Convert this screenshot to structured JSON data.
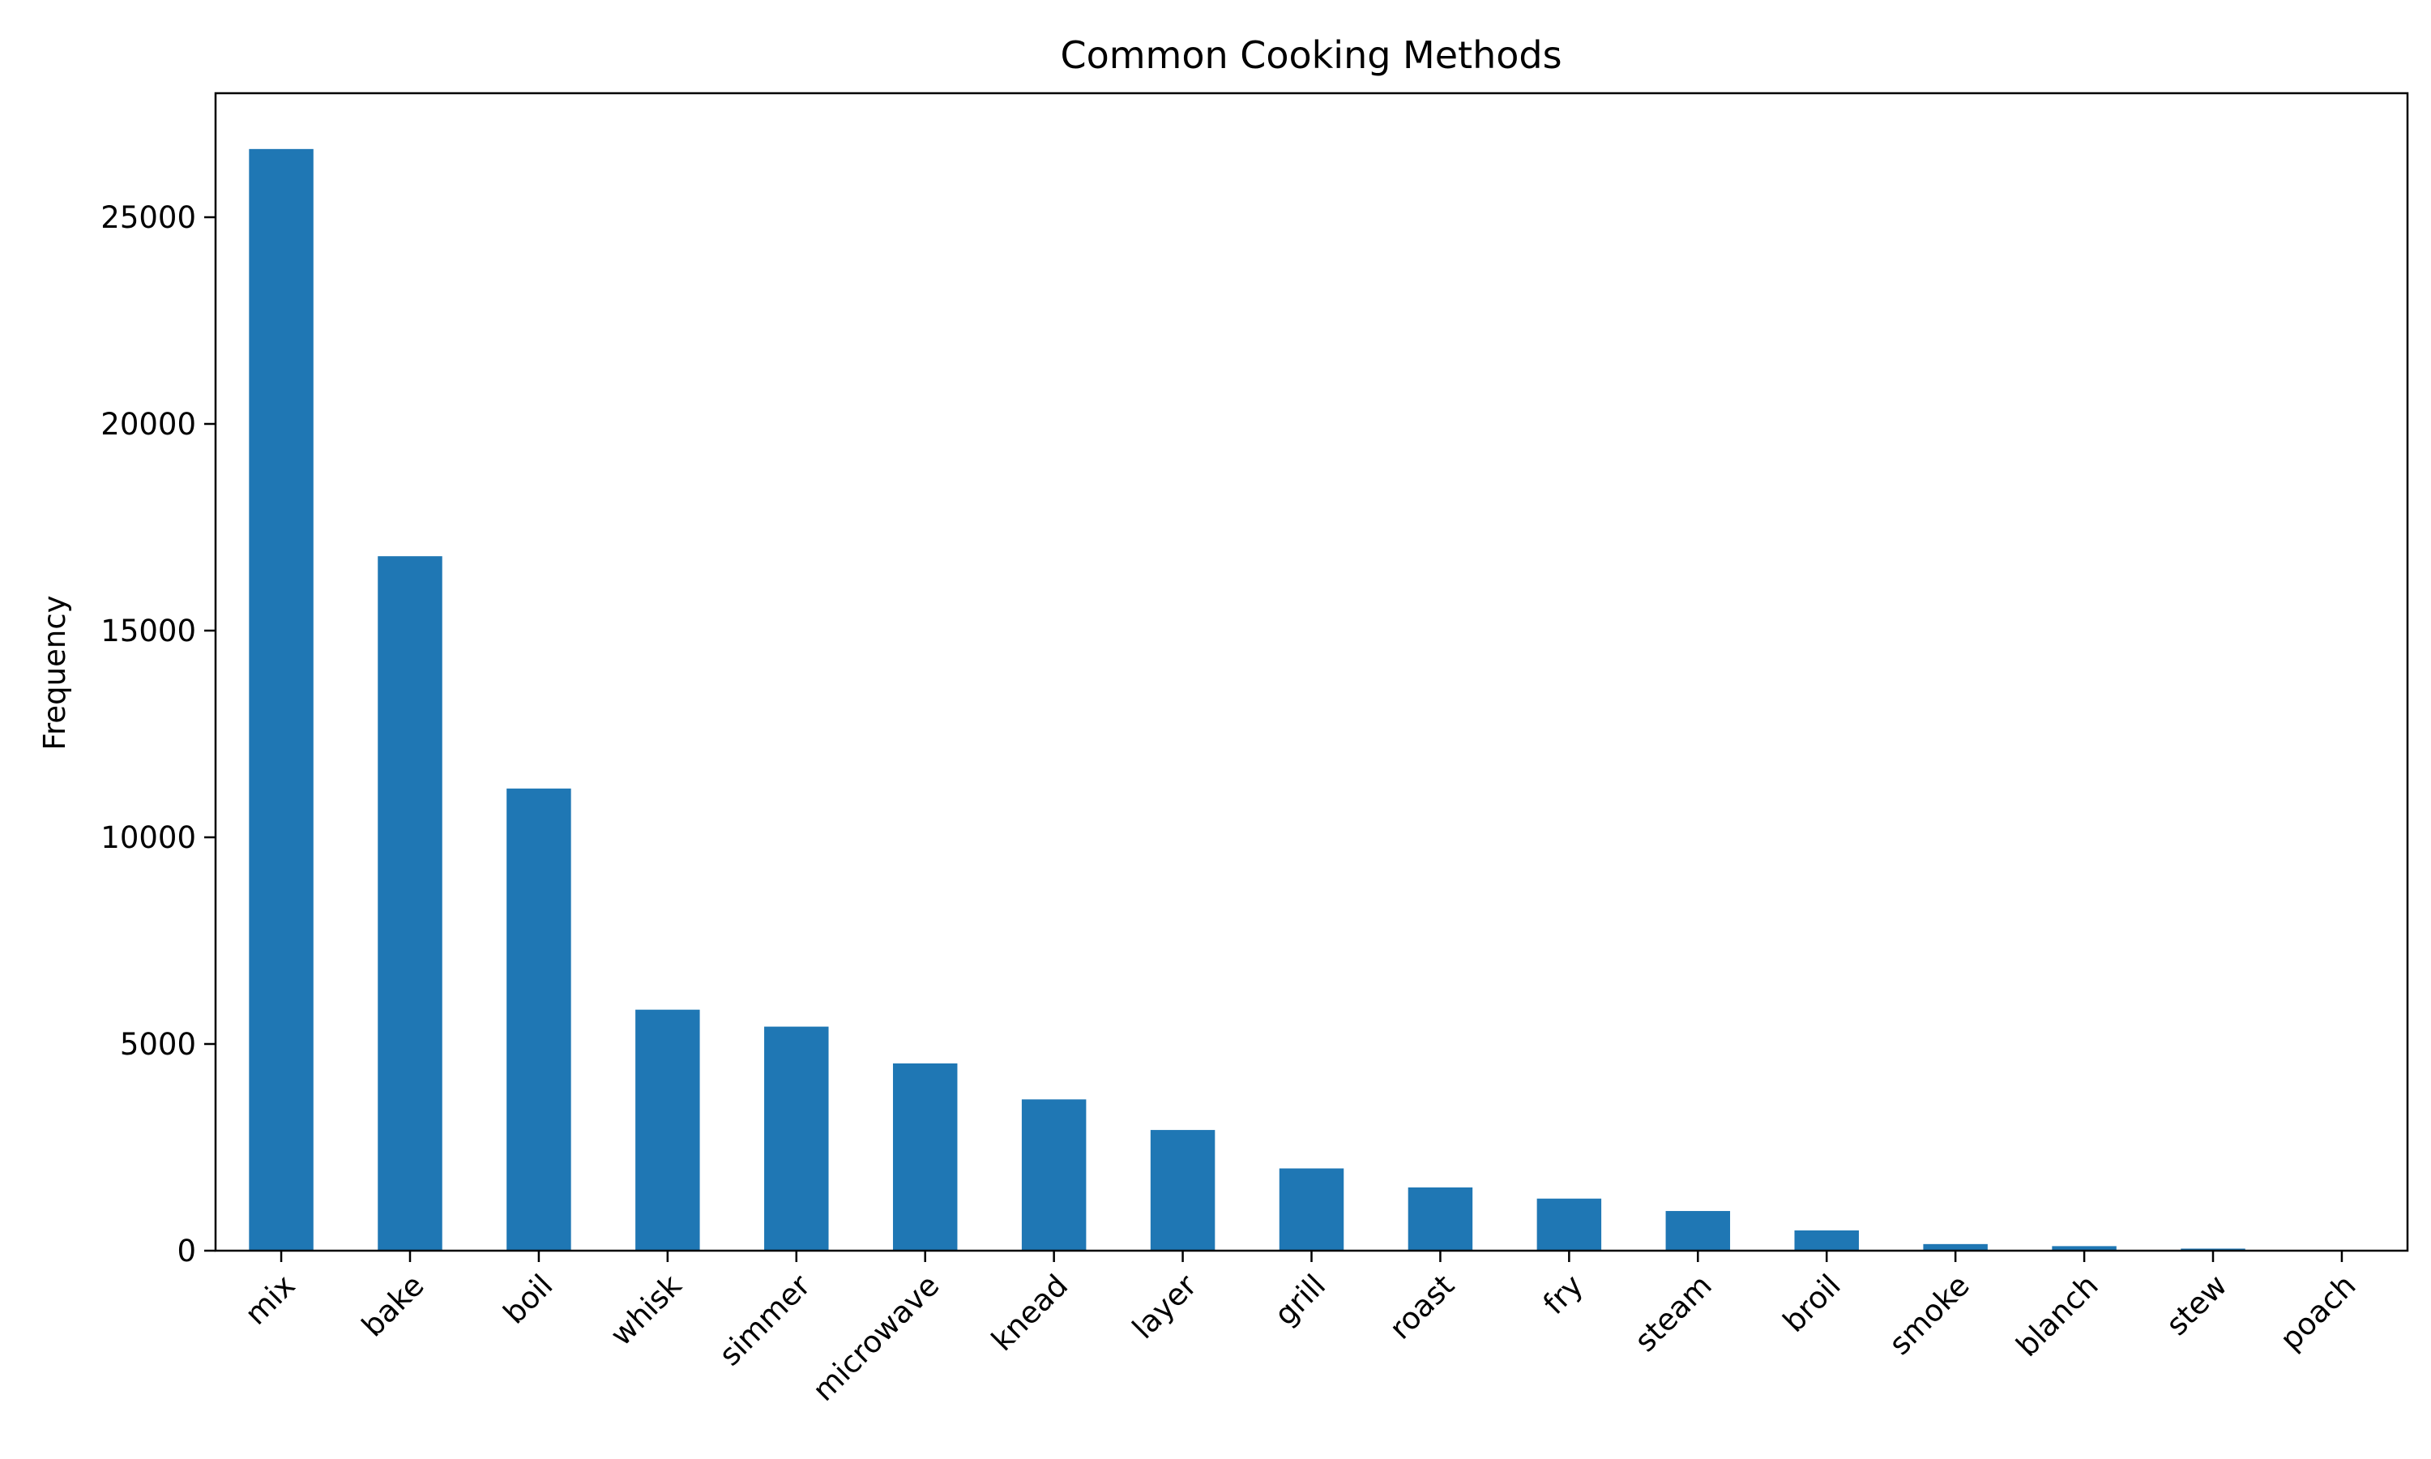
{
  "chart_data": {
    "type": "bar",
    "title": "Common Cooking Methods",
    "xlabel": "",
    "ylabel": "Frequency",
    "categories": [
      "mix",
      "bake",
      "boil",
      "whisk",
      "simmer",
      "microwave",
      "knead",
      "layer",
      "grill",
      "roast",
      "fry",
      "steam",
      "broil",
      "smoke",
      "blanch",
      "stew",
      "poach"
    ],
    "values": [
      26650,
      16800,
      11180,
      5830,
      5420,
      4530,
      3660,
      2920,
      1990,
      1530,
      1260,
      960,
      490,
      160,
      110,
      50,
      10
    ],
    "ylim": [
      0,
      28000
    ],
    "yticks": [
      0,
      5000,
      10000,
      15000,
      20000,
      25000
    ],
    "bar_color": "#1f77b4",
    "grid": false,
    "legend": "none",
    "x_tick_rotation_deg": -45
  }
}
